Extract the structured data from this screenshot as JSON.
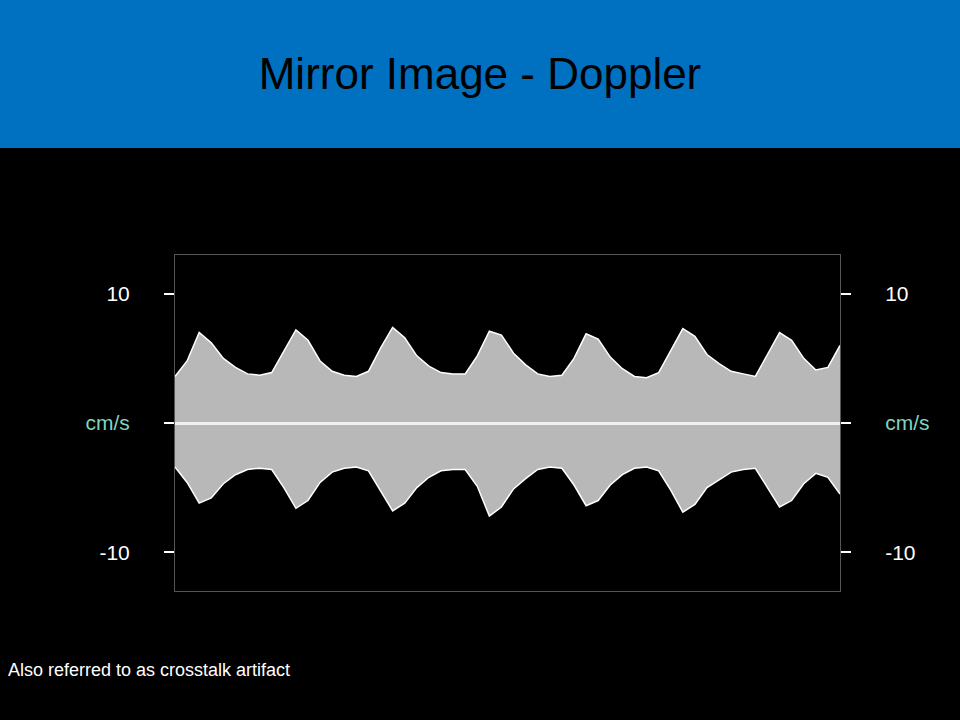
{
  "chart_data": {
    "type": "area",
    "title": "Mirror Image - Doppler",
    "annotations": [
      "Also referred to as crosstalk artifact"
    ],
    "x": [
      0,
      1,
      2,
      3,
      4,
      5,
      6,
      7,
      8,
      9,
      10,
      11,
      12,
      13,
      14,
      15,
      16,
      17,
      18,
      19,
      20,
      21,
      22,
      23,
      24,
      25,
      26,
      27,
      28,
      29,
      30,
      31,
      32,
      33,
      34,
      35,
      36,
      37,
      38,
      39,
      40,
      41,
      42,
      43,
      44,
      45,
      46,
      47,
      48,
      49,
      50,
      51,
      52,
      53,
      54,
      55
    ],
    "xlim": [
      0,
      55
    ],
    "ylim": [
      -13,
      13
    ],
    "yticks": [
      10,
      {
        "value": 0,
        "label": "cm/s"
      },
      -10
    ],
    "tick_labels": "y",
    "grid": false,
    "series": [
      {
        "color": "#ffffff",
        "values": [
          3.6,
          4.8,
          7.0,
          6.2,
          5.0,
          4.3,
          3.8,
          3.7,
          3.9,
          5.5,
          7.2,
          6.4,
          4.8,
          4.0,
          3.7,
          3.6,
          4.0,
          5.8,
          7.4,
          6.6,
          5.2,
          4.4,
          3.9,
          3.8,
          3.8,
          5.2,
          7.1,
          6.8,
          5.4,
          4.5,
          3.8,
          3.6,
          3.7,
          5.0,
          6.9,
          6.5,
          5.1,
          4.2,
          3.6,
          3.5,
          3.9,
          5.6,
          7.3,
          6.7,
          5.3,
          4.6,
          4.0,
          3.8,
          3.6,
          5.3,
          7.0,
          6.4,
          5.0,
          4.1,
          4.3,
          6.0
        ]
      },
      {
        "color": "#ffffff",
        "values": [
          -3.4,
          -4.6,
          -6.2,
          -5.8,
          -4.7,
          -4.0,
          -3.6,
          -3.5,
          -3.6,
          -5.0,
          -6.6,
          -6.0,
          -4.6,
          -3.8,
          -3.5,
          -3.4,
          -3.7,
          -5.3,
          -6.8,
          -6.2,
          -5.0,
          -4.2,
          -3.7,
          -3.6,
          -3.6,
          -4.9,
          -7.2,
          -6.5,
          -5.1,
          -4.3,
          -3.6,
          -3.4,
          -3.5,
          -4.8,
          -6.4,
          -6.0,
          -4.8,
          -4.0,
          -3.5,
          -3.4,
          -3.7,
          -5.2,
          -6.9,
          -6.3,
          -5.0,
          -4.4,
          -3.8,
          -3.6,
          -3.5,
          -5.0,
          -6.5,
          -6.0,
          -4.7,
          -3.9,
          -4.2,
          -5.5
        ]
      }
    ]
  }
}
